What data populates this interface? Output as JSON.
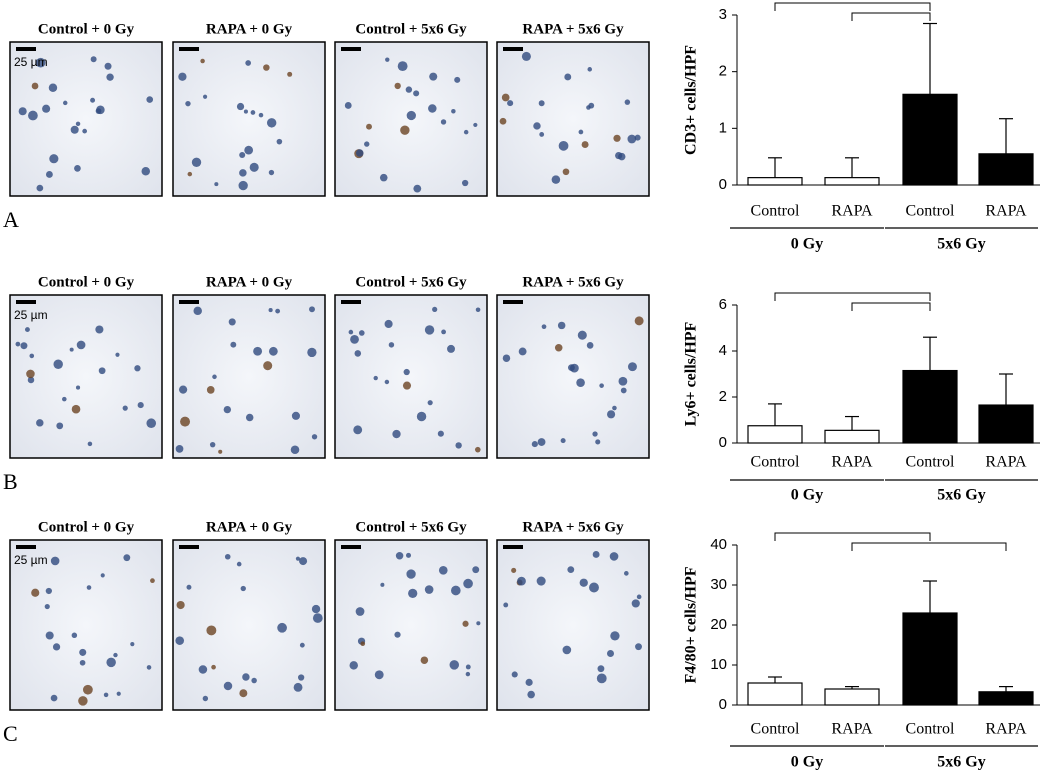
{
  "panels": [
    {
      "letter": "A",
      "titles": [
        "Control + 0 Gy",
        "RAPA + 0 Gy",
        "Control + 5x6 Gy",
        "RAPA + 5x6 Gy"
      ],
      "scale": "25 µm"
    },
    {
      "letter": "B",
      "titles": [
        "Control + 0 Gy",
        "RAPA + 0 Gy",
        "Control + 5x6 Gy",
        "RAPA + 5x6 Gy"
      ],
      "scale": "25 µm"
    },
    {
      "letter": "C",
      "titles": [
        "Control + 0 Gy",
        "RAPA + 0 Gy",
        "Control + 5x6 Gy",
        "RAPA + 5x6 Gy"
      ],
      "scale": "25 µm"
    }
  ],
  "chart_data": [
    {
      "type": "bar",
      "y_label": "CD3+ cells/HPF",
      "categories": [
        "Control",
        "RAPA",
        "Control",
        "RAPA"
      ],
      "groups": [
        "0 Gy",
        "5x6 Gy"
      ],
      "values": [
        0.13,
        0.13,
        1.6,
        0.55
      ],
      "errors": [
        0.35,
        0.35,
        1.25,
        0.62
      ],
      "colors": [
        "#ffffff",
        "#ffffff",
        "#000000",
        "#000000"
      ],
      "ylim": [
        0,
        3
      ],
      "yticks": [
        0,
        1,
        2,
        3
      ],
      "significance": [
        [
          0,
          2
        ],
        [
          1,
          2
        ]
      ]
    },
    {
      "type": "bar",
      "y_label": "Ly6+ cells/HPF",
      "categories": [
        "Control",
        "RAPA",
        "Control",
        "RAPA"
      ],
      "groups": [
        "0 Gy",
        "5x6 Gy"
      ],
      "values": [
        0.75,
        0.55,
        3.15,
        1.65
      ],
      "errors": [
        0.95,
        0.6,
        1.45,
        1.35
      ],
      "colors": [
        "#ffffff",
        "#ffffff",
        "#000000",
        "#000000"
      ],
      "ylim": [
        0,
        6
      ],
      "yticks": [
        0,
        2,
        4,
        6
      ],
      "significance": [
        [
          0,
          2
        ],
        [
          1,
          2
        ]
      ]
    },
    {
      "type": "bar",
      "y_label": "F4/80+ cells/HPF",
      "categories": [
        "Control",
        "RAPA",
        "Control",
        "RAPA"
      ],
      "groups": [
        "0 Gy",
        "5x6 Gy"
      ],
      "values": [
        5.5,
        4,
        23,
        3.3
      ],
      "errors": [
        1.5,
        0.6,
        8,
        1.3
      ],
      "colors": [
        "#ffffff",
        "#ffffff",
        "#000000",
        "#000000"
      ],
      "ylim": [
        0,
        40
      ],
      "yticks": [
        0,
        10,
        20,
        30,
        40
      ],
      "significance": [
        [
          0,
          2
        ],
        [
          1,
          3
        ]
      ]
    }
  ]
}
